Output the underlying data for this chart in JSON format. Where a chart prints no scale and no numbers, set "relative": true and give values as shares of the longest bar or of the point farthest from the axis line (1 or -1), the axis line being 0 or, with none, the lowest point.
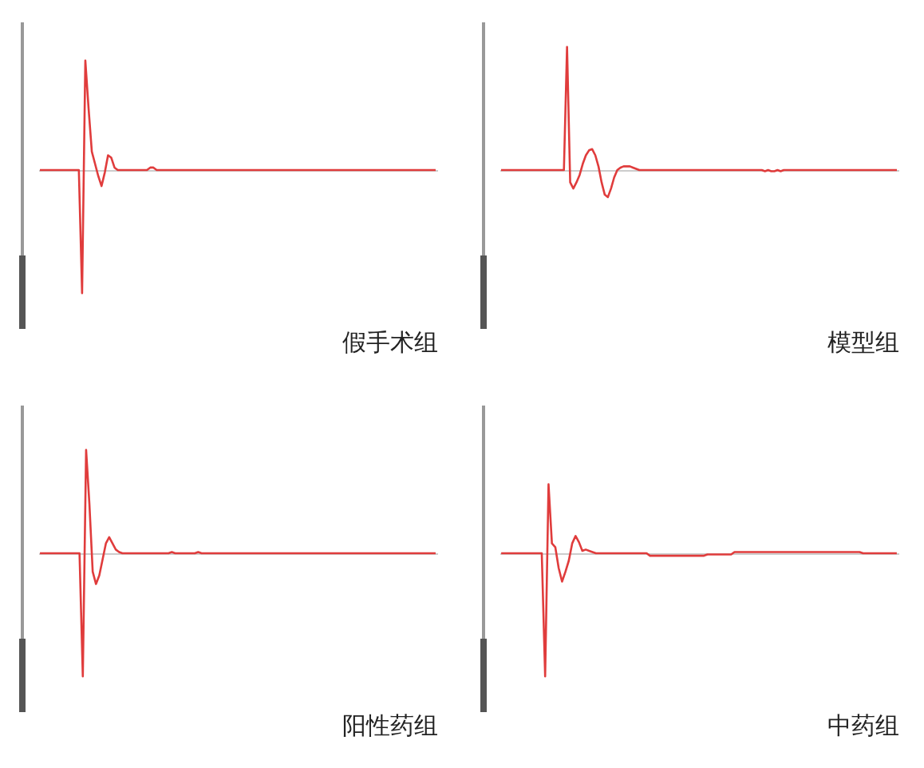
{
  "chart_data": [
    {
      "type": "line",
      "relative": true,
      "xlabel": "假手术组",
      "categories": [
        null,
        null,
        null,
        null,
        null,
        null,
        null,
        null,
        null,
        null,
        null,
        null,
        null,
        null,
        null,
        null,
        null,
        null,
        null,
        null,
        null,
        null,
        null,
        null,
        null,
        null,
        null,
        null,
        null,
        null,
        null,
        null,
        null,
        null,
        null,
        null,
        null,
        null,
        null,
        null,
        null,
        null,
        null,
        null,
        null,
        null,
        null,
        null,
        null,
        null,
        null,
        null,
        null,
        null,
        null,
        null,
        null,
        null,
        null,
        null,
        null,
        null,
        null,
        null,
        null,
        null,
        null,
        null,
        null,
        null,
        null,
        null,
        null,
        null,
        null,
        null,
        null,
        null,
        null,
        null,
        null,
        null,
        null,
        null,
        null,
        null,
        null,
        null,
        null,
        null,
        null,
        null,
        null,
        null,
        null,
        null,
        null,
        null,
        null,
        null,
        null,
        null,
        null,
        null,
        null,
        null,
        null,
        null,
        null,
        null,
        null,
        null,
        null,
        null,
        null,
        null,
        null,
        null,
        null,
        null,
        null,
        null,
        null
      ],
      "series": [
        {
          "color": "#e03c3c",
          "values": [
            0,
            0,
            0,
            0,
            0,
            0,
            0,
            0,
            0,
            0,
            0,
            0,
            0,
            -1,
            0.89,
            0.5,
            0.15,
            0.05,
            -0.05,
            -0.13,
            -0.02,
            0.12,
            0.1,
            0.02,
            0,
            0,
            0,
            0,
            0,
            0,
            0,
            0,
            0,
            0,
            0.02,
            0.02,
            0,
            0,
            0,
            0,
            0,
            0,
            0,
            0,
            0,
            0,
            0,
            0,
            0,
            0,
            0,
            0,
            0,
            0,
            0,
            0,
            0,
            0,
            0,
            0,
            0,
            0,
            0,
            0,
            0,
            0,
            0,
            0,
            0,
            0,
            0,
            0,
            0,
            0,
            0,
            0,
            0,
            0,
            0,
            0,
            0,
            0,
            0,
            0,
            0,
            0,
            0,
            0,
            0,
            0,
            0,
            0,
            0,
            0,
            0,
            0,
            0,
            0,
            0,
            0,
            0,
            0,
            0,
            0,
            0,
            0,
            0,
            0,
            0,
            0,
            0,
            0,
            0,
            0,
            0,
            0,
            0,
            0,
            0,
            0,
            0,
            0,
            0
          ]
        }
      ]
    },
    {
      "type": "line",
      "relative": true,
      "xlabel": "模型组",
      "categories": [
        null,
        null,
        null,
        null,
        null,
        null,
        null,
        null,
        null,
        null,
        null,
        null,
        null,
        null,
        null,
        null,
        null,
        null,
        null,
        null,
        null,
        null,
        null,
        null,
        null,
        null,
        null,
        null,
        null,
        null,
        null,
        null,
        null,
        null,
        null,
        null,
        null,
        null,
        null,
        null,
        null,
        null,
        null,
        null,
        null,
        null,
        null,
        null,
        null,
        null,
        null,
        null,
        null,
        null,
        null,
        null,
        null,
        null,
        null,
        null,
        null,
        null,
        null,
        null,
        null,
        null,
        null,
        null,
        null,
        null,
        null,
        null,
        null,
        null,
        null,
        null,
        null,
        null,
        null,
        null,
        null,
        null,
        null,
        null,
        null,
        null,
        null,
        null,
        null,
        null,
        null,
        null,
        null,
        null,
        null,
        null,
        null,
        null,
        null,
        null,
        null,
        null,
        null,
        null,
        null,
        null,
        null,
        null,
        null,
        null,
        null,
        null,
        null,
        null,
        null,
        null,
        null,
        null,
        null,
        null,
        null,
        null,
        null,
        null,
        null,
        null,
        null
      ],
      "series": [
        {
          "color": "#e03c3c",
          "values": [
            0,
            0,
            0,
            0,
            0,
            0,
            0,
            0,
            0,
            0,
            0,
            0,
            0,
            0,
            0,
            0,
            0,
            0,
            0,
            0,
            0,
            1,
            -0.1,
            -0.15,
            -0.1,
            -0.04,
            0.05,
            0.12,
            0.16,
            0.17,
            0.12,
            0.03,
            -0.1,
            -0.2,
            -0.22,
            -0.15,
            -0.06,
            0,
            0.02,
            0.03,
            0.03,
            0.03,
            0.02,
            0.01,
            0,
            0,
            0,
            0,
            0,
            0,
            0,
            0,
            0,
            0,
            0,
            0,
            0,
            0,
            0,
            0,
            0,
            0,
            0,
            0,
            0,
            0,
            0,
            0,
            0,
            0,
            0,
            0,
            0,
            0,
            0,
            0,
            0,
            0,
            0,
            0,
            0,
            0,
            0,
            0,
            -0.01,
            0,
            -0.01,
            -0.01,
            0,
            -0.01,
            0,
            0,
            0,
            0,
            0,
            0,
            0,
            0,
            0,
            0,
            0,
            0,
            0,
            0,
            0,
            0,
            0,
            0,
            0,
            0,
            0,
            0,
            0,
            0,
            0,
            0,
            0,
            0,
            0,
            0,
            0,
            0,
            0,
            0,
            0,
            0,
            0
          ]
        }
      ]
    },
    {
      "type": "line",
      "relative": true,
      "xlabel": "阳性药组",
      "categories": [
        null,
        null,
        null,
        null,
        null,
        null,
        null,
        null,
        null,
        null,
        null,
        null,
        null,
        null,
        null,
        null,
        null,
        null,
        null,
        null,
        null,
        null,
        null,
        null,
        null,
        null,
        null,
        null,
        null,
        null,
        null,
        null,
        null,
        null,
        null,
        null,
        null,
        null,
        null,
        null,
        null,
        null,
        null,
        null,
        null,
        null,
        null,
        null,
        null,
        null,
        null,
        null,
        null,
        null,
        null,
        null,
        null,
        null,
        null,
        null,
        null,
        null,
        null,
        null,
        null,
        null,
        null,
        null,
        null,
        null,
        null,
        null,
        null,
        null,
        null,
        null,
        null,
        null,
        null,
        null,
        null,
        null,
        null,
        null,
        null,
        null,
        null,
        null,
        null,
        null,
        null,
        null,
        null,
        null,
        null,
        null,
        null,
        null,
        null,
        null,
        null,
        null,
        null,
        null,
        null,
        null,
        null,
        null,
        null,
        null,
        null,
        null,
        null,
        null,
        null,
        null,
        null,
        null,
        null,
        null,
        null
      ],
      "series": [
        {
          "color": "#e03c3c",
          "values": [
            0,
            0,
            0,
            0,
            0,
            0,
            0,
            0,
            0,
            0,
            0,
            0,
            0,
            -1,
            0.84,
            0.4,
            -0.15,
            -0.25,
            -0.18,
            -0.05,
            0.08,
            0.13,
            0.08,
            0.03,
            0.01,
            0,
            0,
            0,
            0,
            0,
            0,
            0,
            0,
            0,
            0,
            0,
            0,
            0,
            0,
            0,
            0.01,
            0,
            0,
            0,
            0,
            0,
            0,
            0,
            0.01,
            0,
            0,
            0,
            0,
            0,
            0,
            0,
            0,
            0,
            0,
            0,
            0,
            0,
            0,
            0,
            0,
            0,
            0,
            0,
            0,
            0,
            0,
            0,
            0,
            0,
            0,
            0,
            0,
            0,
            0,
            0,
            0,
            0,
            0,
            0,
            0,
            0,
            0,
            0,
            0,
            0,
            0,
            0,
            0,
            0,
            0,
            0,
            0,
            0,
            0,
            0,
            0,
            0,
            0,
            0,
            0,
            0,
            0,
            0,
            0,
            0,
            0,
            0,
            0,
            0,
            0,
            0,
            0,
            0,
            0,
            0,
            0
          ]
        }
      ]
    },
    {
      "type": "line",
      "relative": true,
      "xlabel": "中药组",
      "categories": [
        null,
        null,
        null,
        null,
        null,
        null,
        null,
        null,
        null,
        null,
        null,
        null,
        null,
        null,
        null,
        null,
        null,
        null,
        null,
        null,
        null,
        null,
        null,
        null,
        null,
        null,
        null,
        null,
        null,
        null,
        null,
        null,
        null,
        null,
        null,
        null,
        null,
        null,
        null,
        null,
        null,
        null,
        null,
        null,
        null,
        null,
        null,
        null,
        null,
        null,
        null,
        null,
        null,
        null,
        null,
        null,
        null,
        null,
        null,
        null,
        null,
        null,
        null,
        null,
        null,
        null,
        null,
        null,
        null,
        null,
        null,
        null,
        null,
        null,
        null,
        null,
        null,
        null,
        null,
        null,
        null,
        null,
        null,
        null,
        null,
        null,
        null,
        null,
        null,
        null,
        null,
        null,
        null,
        null,
        null,
        null,
        null,
        null,
        null,
        null,
        null,
        null,
        null,
        null,
        null,
        null,
        null,
        null,
        null,
        null,
        null,
        null,
        null,
        null,
        null,
        null,
        null,
        null
      ],
      "series": [
        {
          "color": "#e03c3c",
          "values": [
            0,
            0,
            0,
            0,
            0,
            0,
            0,
            0,
            0,
            0,
            0,
            0,
            0,
            -1,
            0.56,
            0.08,
            0.05,
            -0.12,
            -0.23,
            -0.15,
            -0.06,
            0.08,
            0.14,
            0.09,
            0.02,
            0.03,
            0.02,
            0.01,
            0,
            0,
            0,
            0,
            0,
            0,
            0,
            0,
            0,
            0,
            0,
            0,
            0,
            0,
            0,
            0,
            -0.02,
            -0.02,
            -0.02,
            -0.02,
            -0.02,
            -0.02,
            -0.02,
            -0.02,
            -0.02,
            -0.02,
            -0.02,
            -0.02,
            -0.02,
            -0.02,
            -0.02,
            -0.02,
            -0.02,
            -0.01,
            -0.01,
            -0.01,
            -0.01,
            -0.01,
            -0.01,
            -0.01,
            -0.01,
            0.01,
            0.01,
            0.01,
            0.01,
            0.01,
            0.01,
            0.01,
            0.01,
            0.01,
            0.01,
            0.01,
            0.01,
            0.01,
            0.01,
            0.01,
            0.01,
            0.01,
            0.01,
            0.01,
            0.01,
            0.01,
            0.01,
            0.01,
            0.01,
            0.01,
            0.01,
            0.01,
            0.01,
            0.01,
            0.01,
            0.01,
            0.01,
            0.01,
            0.01,
            0.01,
            0.01,
            0.01,
            0.01,
            0,
            0,
            0,
            0,
            0,
            0,
            0,
            0,
            0,
            0,
            0
          ]
        }
      ]
    }
  ]
}
